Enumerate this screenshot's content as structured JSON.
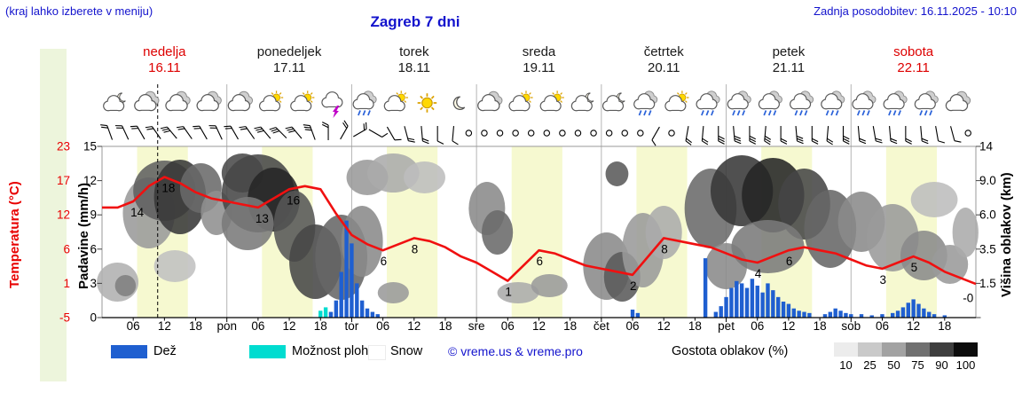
{
  "header": {
    "hint": "(kraj lahko izberete v meniju)",
    "title": "Zagreb 7 dni",
    "updated": "Zadnja posodobitev: 16.11.2025 - 10:10"
  },
  "axes": {
    "left_primary_label": "Temperatura (°C)",
    "left_secondary_label": "Padavine (mm/h)",
    "right_label": "Višina oblakov (km)",
    "temp_ticks": [
      "23",
      "17",
      "12",
      "6",
      "1",
      "-5"
    ],
    "precip_ticks": [
      "15",
      "12",
      "9",
      "6",
      "3",
      "0"
    ],
    "cloud_height_ticks": [
      "14",
      "9.0",
      "6.0",
      "3.5",
      "1.5"
    ],
    "time_ticks": [
      "06",
      "12",
      "18"
    ],
    "day_boundary_labels": [
      "pon",
      "tor",
      "sre",
      "čet",
      "pet",
      "sob"
    ]
  },
  "days": [
    {
      "name": "nedelja",
      "date": "16.11",
      "highlight": true
    },
    {
      "name": "ponedeljek",
      "date": "17.11",
      "highlight": false
    },
    {
      "name": "torek",
      "date": "18.11",
      "highlight": false
    },
    {
      "name": "sreda",
      "date": "19.11",
      "highlight": false
    },
    {
      "name": "četrtek",
      "date": "20.11",
      "highlight": false
    },
    {
      "name": "petek",
      "date": "21.11",
      "highlight": false
    },
    {
      "name": "sobota",
      "date": "22.11",
      "highlight": true
    }
  ],
  "legend": {
    "rain_label": "Dež",
    "showers_label": "Možnost plohe",
    "snow_label": "Snow",
    "copyright": "© vreme.us & vreme.pro",
    "cloud_density_label": "Gostota oblakov (%)",
    "cloud_density_ticks": [
      "10",
      "25",
      "50",
      "75",
      "90",
      "100"
    ]
  },
  "colors": {
    "accent_blue": "#1313cd",
    "red": "#e80000",
    "temp_line": "#f01010",
    "rain_bar": "#1f5fd0",
    "shower": "#00dcd0",
    "daylight_band": "#f6f9d0",
    "day_label_red": "#dd0000",
    "grid": "#b5b5b5",
    "density_scale": [
      "#ececec",
      "#c9c9c9",
      "#a2a2a2",
      "#707070",
      "#3e3e3e",
      "#0c0c0c"
    ]
  },
  "chart_data": {
    "type": "line",
    "subtype": "meteogram",
    "title": "Zagreb 7 dni",
    "x_hours_range": [
      0,
      168
    ],
    "temp_axis_range": [
      -5,
      23
    ],
    "precip_axis_range": [
      0,
      15
    ],
    "daylight": [
      6.75,
      16.5
    ],
    "now_hour": 10.7,
    "temperature_series": [
      [
        0,
        13
      ],
      [
        3,
        13
      ],
      [
        6,
        14
      ],
      [
        9,
        16.5
      ],
      [
        12,
        18
      ],
      [
        15,
        17
      ],
      [
        18,
        15.5
      ],
      [
        21,
        14.5
      ],
      [
        24,
        14
      ],
      [
        27,
        13.5
      ],
      [
        30,
        13
      ],
      [
        33,
        14.5
      ],
      [
        36,
        16
      ],
      [
        39,
        16.5
      ],
      [
        42,
        16
      ],
      [
        45,
        12
      ],
      [
        48,
        8.5
      ],
      [
        51,
        7
      ],
      [
        54,
        6
      ],
      [
        57,
        7
      ],
      [
        60,
        8
      ],
      [
        63,
        7.5
      ],
      [
        66,
        6.5
      ],
      [
        69,
        5
      ],
      [
        72,
        4
      ],
      [
        75,
        2.5
      ],
      [
        78,
        1
      ],
      [
        81,
        3.5
      ],
      [
        84,
        6
      ],
      [
        87,
        5.5
      ],
      [
        90,
        4.5
      ],
      [
        93,
        3.5
      ],
      [
        96,
        3
      ],
      [
        99,
        2.5
      ],
      [
        102,
        2
      ],
      [
        105,
        5
      ],
      [
        108,
        8
      ],
      [
        111,
        7.5
      ],
      [
        114,
        7
      ],
      [
        117,
        6.5
      ],
      [
        120,
        5.5
      ],
      [
        123,
        4.5
      ],
      [
        126,
        4
      ],
      [
        129,
        5
      ],
      [
        132,
        6
      ],
      [
        135,
        6.5
      ],
      [
        138,
        6
      ],
      [
        141,
        5.5
      ],
      [
        144,
        4.5
      ],
      [
        147,
        3.5
      ],
      [
        150,
        3
      ],
      [
        153,
        4
      ],
      [
        156,
        5
      ],
      [
        159,
        4
      ],
      [
        162,
        2.5
      ],
      [
        165,
        1.5
      ],
      [
        168,
        0.5
      ]
    ],
    "temperature_annotations": [
      [
        6,
        14,
        "14"
      ],
      [
        12,
        18,
        "18"
      ],
      [
        30,
        13,
        "13"
      ],
      [
        36,
        16,
        "16"
      ],
      [
        54,
        6,
        "6"
      ],
      [
        60,
        8,
        "8"
      ],
      [
        78,
        1,
        "1"
      ],
      [
        84,
        6,
        "6"
      ],
      [
        102,
        2,
        "2"
      ],
      [
        108,
        8,
        "8"
      ],
      [
        126,
        4,
        "4"
      ],
      [
        132,
        6,
        "6"
      ],
      [
        150,
        3,
        "3"
      ],
      [
        156,
        5,
        "5"
      ],
      [
        166,
        0,
        "-0"
      ]
    ],
    "precipitation_mm_h": [
      [
        44,
        0.5
      ],
      [
        45,
        1.5
      ],
      [
        46,
        4
      ],
      [
        47,
        8.5
      ],
      [
        48,
        6.5
      ],
      [
        49,
        3
      ],
      [
        50,
        1.5
      ],
      [
        51,
        0.8
      ],
      [
        52,
        0.5
      ],
      [
        53,
        0.3
      ],
      [
        102,
        0.7
      ],
      [
        103,
        0.4
      ],
      [
        116,
        5.2
      ],
      [
        118,
        0.5
      ],
      [
        119,
        1
      ],
      [
        120,
        1.8
      ],
      [
        121,
        2.6
      ],
      [
        122,
        3.2
      ],
      [
        123,
        3
      ],
      [
        124,
        2.6
      ],
      [
        125,
        3.4
      ],
      [
        126,
        2.8
      ],
      [
        127,
        2.2
      ],
      [
        128,
        3
      ],
      [
        129,
        2.4
      ],
      [
        130,
        1.8
      ],
      [
        131,
        1.4
      ],
      [
        132,
        1.2
      ],
      [
        133,
        0.8
      ],
      [
        134,
        0.6
      ],
      [
        135,
        0.5
      ],
      [
        136,
        0.4
      ],
      [
        139,
        0.3
      ],
      [
        140,
        0.5
      ],
      [
        141,
        0.8
      ],
      [
        142,
        0.6
      ],
      [
        143,
        0.4
      ],
      [
        144,
        0.3
      ],
      [
        146,
        0.3
      ],
      [
        148,
        0.2
      ],
      [
        150,
        0.3
      ],
      [
        152,
        0.4
      ],
      [
        153,
        0.6
      ],
      [
        154,
        0.9
      ],
      [
        155,
        1.3
      ],
      [
        156,
        1.6
      ],
      [
        157,
        1.2
      ],
      [
        158,
        0.8
      ],
      [
        159,
        0.5
      ],
      [
        160,
        0.3
      ],
      [
        162,
        0.2
      ]
    ],
    "shower_marks": [
      [
        42,
        0.6
      ],
      [
        43,
        0.9
      ]
    ],
    "clouds": [
      [
        3,
        318,
        4,
        22,
        "#b0b0b0"
      ],
      [
        4.5,
        322,
        2,
        12,
        "#808080"
      ],
      [
        9,
        240,
        5,
        40,
        "#9a9a9a"
      ],
      [
        12,
        215,
        6,
        34,
        "#606060"
      ],
      [
        15,
        222,
        5,
        42,
        "#383838"
      ],
      [
        19,
        212,
        4,
        28,
        "#6a6a6a"
      ],
      [
        14,
        300,
        4,
        18,
        "#c0c0c0"
      ],
      [
        22,
        240,
        3,
        25,
        "#909090"
      ],
      [
        27,
        195,
        4,
        22,
        "#4a4a4a"
      ],
      [
        30,
        218,
        7,
        44,
        "#474747"
      ],
      [
        33,
        225,
        5,
        36,
        "#262626"
      ],
      [
        28,
        252,
        5,
        30,
        "#7a7a7a"
      ],
      [
        37,
        255,
        4,
        40,
        "#575757"
      ],
      [
        41,
        295,
        5,
        42,
        "#474747"
      ],
      [
        46,
        290,
        5,
        48,
        "#676767"
      ],
      [
        50,
        272,
        4,
        40,
        "#8a8a8a"
      ],
      [
        51,
        200,
        4,
        20,
        "#9a9a9a"
      ],
      [
        56,
        195,
        5,
        22,
        "#ababab"
      ],
      [
        62,
        200,
        4,
        18,
        "#bdbdbd"
      ],
      [
        56,
        330,
        3,
        12,
        "#9a9a9a"
      ],
      [
        74,
        235,
        3.5,
        30,
        "#8a8a8a"
      ],
      [
        76,
        262,
        3,
        25,
        "#6a6a6a"
      ],
      [
        80,
        330,
        4,
        12,
        "#ababab"
      ],
      [
        86,
        322,
        3.5,
        13,
        "#9a9a9a"
      ],
      [
        97,
        300,
        4.5,
        38,
        "#8a8a8a"
      ],
      [
        100,
        312,
        3.5,
        28,
        "#5a5a5a"
      ],
      [
        99,
        196,
        2.2,
        14,
        "#5a5a5a"
      ],
      [
        104,
        282,
        4,
        42,
        "#9a9a9a"
      ],
      [
        108,
        262,
        3.5,
        30,
        "#ababab"
      ],
      [
        117,
        235,
        5,
        45,
        "#6a6a6a"
      ],
      [
        120,
        300,
        4,
        26,
        "#8a8a8a"
      ],
      [
        123,
        215,
        6,
        40,
        "#383838"
      ],
      [
        129,
        220,
        6,
        42,
        "#242424"
      ],
      [
        135,
        230,
        5,
        40,
        "#454545"
      ],
      [
        128,
        278,
        7,
        30,
        "#7a7a7a"
      ],
      [
        140,
        258,
        5,
        44,
        "#676767"
      ],
      [
        146,
        250,
        4.5,
        34,
        "#8a8a8a"
      ],
      [
        152,
        268,
        5,
        38,
        "#9a9a9a"
      ],
      [
        158,
        288,
        4.5,
        28,
        "#8a8a8a"
      ],
      [
        163,
        298,
        3.5,
        22,
        "#9a9a9a"
      ],
      [
        160,
        225,
        4.5,
        20,
        "#bdbdbd"
      ],
      [
        166,
        262,
        2.5,
        28,
        "#ababab"
      ]
    ],
    "icons": [
      [
        2.5,
        "moon-cloud"
      ],
      [
        8.5,
        "cloud"
      ],
      [
        14.5,
        "cloud"
      ],
      [
        20.5,
        "cloud"
      ],
      [
        26.5,
        "cloud"
      ],
      [
        32.5,
        "sun-cloud"
      ],
      [
        38.5,
        "sun-cloud"
      ],
      [
        44.5,
        "thunder"
      ],
      [
        50.5,
        "rain"
      ],
      [
        56.5,
        "sun-cloud"
      ],
      [
        62.5,
        "sun"
      ],
      [
        68.5,
        "moon"
      ],
      [
        74.5,
        "cloud"
      ],
      [
        80.5,
        "sun-cloud"
      ],
      [
        86.5,
        "sun-cloud"
      ],
      [
        92.5,
        "moon-cloud"
      ],
      [
        98.5,
        "moon-cloud"
      ],
      [
        104.5,
        "rain"
      ],
      [
        110.5,
        "sun-cloud"
      ],
      [
        116.5,
        "rain"
      ],
      [
        122.5,
        "rain"
      ],
      [
        128.5,
        "rain"
      ],
      [
        134.5,
        "rain"
      ],
      [
        140.5,
        "rain"
      ],
      [
        146.5,
        "rain"
      ],
      [
        152.5,
        "rain"
      ],
      [
        158.5,
        "rain"
      ],
      [
        164.5,
        "cloud"
      ]
    ],
    "wind": [
      [
        1.5,
        0,
        250,
        2
      ],
      [
        4.5,
        0,
        245,
        2
      ],
      [
        7.5,
        0,
        240,
        2
      ],
      [
        10.5,
        0,
        235,
        2
      ],
      [
        13.5,
        0,
        230,
        3
      ],
      [
        16.5,
        0,
        235,
        2
      ],
      [
        19.5,
        0,
        240,
        2
      ],
      [
        22.5,
        0,
        245,
        2
      ],
      [
        25.5,
        0,
        240,
        2
      ],
      [
        28.5,
        0,
        235,
        2
      ],
      [
        31.5,
        0,
        230,
        3
      ],
      [
        34.5,
        0,
        225,
        3
      ],
      [
        37.5,
        0,
        230,
        3
      ],
      [
        40.5,
        0,
        250,
        3
      ],
      [
        43.5,
        0,
        270,
        2
      ],
      [
        46.5,
        0,
        300,
        2
      ],
      [
        49.5,
        0,
        330,
        2
      ],
      [
        52.5,
        0,
        30,
        1
      ],
      [
        55.5,
        0,
        60,
        1
      ],
      [
        58.5,
        0,
        75,
        2
      ],
      [
        61.5,
        0,
        85,
        2
      ],
      [
        64.5,
        0,
        90,
        1
      ],
      [
        67.5,
        0,
        95,
        1
      ],
      [
        70.5,
        1,
        0,
        0
      ],
      [
        73.5,
        1,
        0,
        0
      ],
      [
        76.5,
        1,
        0,
        0
      ],
      [
        79.5,
        1,
        0,
        0
      ],
      [
        82.5,
        1,
        0,
        0
      ],
      [
        85.5,
        1,
        0,
        0
      ],
      [
        88.5,
        1,
        0,
        0
      ],
      [
        91.5,
        1,
        0,
        0
      ],
      [
        94.5,
        1,
        0,
        0
      ],
      [
        97.5,
        1,
        0,
        0
      ],
      [
        100.5,
        1,
        0,
        0
      ],
      [
        103.5,
        1,
        0,
        0
      ],
      [
        106.5,
        0,
        120,
        1
      ],
      [
        109.5,
        1,
        0,
        0
      ],
      [
        112.5,
        0,
        100,
        2
      ],
      [
        115.5,
        0,
        95,
        2
      ],
      [
        118.5,
        0,
        90,
        3
      ],
      [
        121.5,
        0,
        85,
        3
      ],
      [
        124.5,
        0,
        90,
        3
      ],
      [
        127.5,
        0,
        95,
        3
      ],
      [
        130.5,
        0,
        90,
        2
      ],
      [
        133.5,
        0,
        85,
        3
      ],
      [
        136.5,
        0,
        90,
        2
      ],
      [
        139.5,
        0,
        95,
        2
      ],
      [
        142.5,
        0,
        90,
        3
      ],
      [
        145.5,
        0,
        85,
        2
      ],
      [
        148.5,
        0,
        80,
        2
      ],
      [
        151.5,
        0,
        85,
        2
      ],
      [
        154.5,
        0,
        90,
        2
      ],
      [
        157.5,
        0,
        85,
        2
      ],
      [
        160.5,
        0,
        80,
        1
      ],
      [
        163.5,
        0,
        75,
        1
      ],
      [
        166.5,
        1,
        0,
        0
      ]
    ]
  }
}
